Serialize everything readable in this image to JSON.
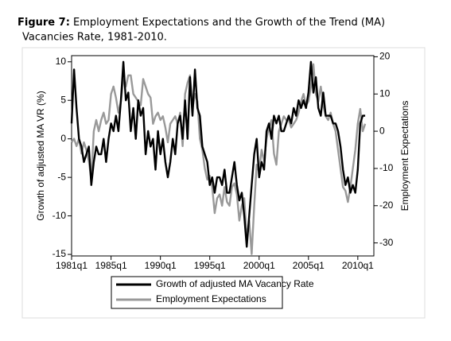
{
  "chart_data": {
    "type": "line",
    "figure_label": "Figure 7:",
    "title": [
      "Employment Expectations and the Growth of the Trend (MA)",
      "Vacancies Rate, 1981-2010."
    ],
    "ylabel": "Growth of adjusted MA VR (%)",
    "y2label": "Employment Expectations",
    "x": [
      84,
      85,
      86,
      87,
      88,
      89,
      90,
      91,
      92,
      93,
      94,
      95,
      96,
      97,
      98,
      99,
      100,
      101,
      102,
      103,
      104,
      105,
      106,
      107,
      108,
      109,
      110,
      111,
      112,
      113,
      114,
      115,
      116,
      117,
      118,
      119,
      120,
      121,
      122,
      123,
      124,
      125,
      126,
      127,
      128,
      129,
      130,
      131,
      132,
      133,
      134,
      135,
      136,
      137,
      138,
      139,
      140,
      141,
      142,
      143,
      144,
      145,
      146,
      147,
      148,
      149,
      150,
      151,
      152,
      153,
      154,
      155,
      156,
      157,
      158,
      159,
      160,
      161,
      162,
      163,
      164,
      165,
      166,
      167,
      168,
      169,
      170,
      171,
      172,
      173,
      174,
      175,
      176,
      177,
      178,
      179,
      180,
      181,
      182,
      183,
      184,
      185,
      186,
      187,
      188,
      189,
      190,
      191,
      192,
      193,
      194,
      195,
      196,
      197,
      198,
      199,
      200,
      201,
      202,
      203
    ],
    "xlim": [
      84,
      206.5
    ],
    "xticks": [
      {
        "value": 84,
        "label": "1981q1"
      },
      {
        "value": 100,
        "label": "1985q1"
      },
      {
        "value": 120,
        "label": "1990q1"
      },
      {
        "value": 140,
        "label": "1995q1"
      },
      {
        "value": 160,
        "label": "2000q1"
      },
      {
        "value": 180,
        "label": "2005q1"
      },
      {
        "value": 200,
        "label": "2010q1"
      }
    ],
    "ylim": [
      -15.2,
      10.8
    ],
    "yticks": [
      10,
      5,
      0,
      -5,
      -10,
      -15
    ],
    "y2lim": [
      -33.5,
      20.3
    ],
    "y2ticks": [
      20,
      10,
      0,
      -10,
      -20,
      -30
    ],
    "legend": "bottom",
    "series": [
      {
        "name": "Growth of adjusted MA Vacancy Rate",
        "color": "#000000",
        "values": [
          2,
          9,
          4,
          0,
          -1,
          -3,
          -2,
          -1,
          -6,
          -3,
          -1,
          -2,
          -2,
          0,
          -3,
          0,
          2,
          1,
          3,
          1,
          5,
          10,
          5,
          6,
          1,
          4,
          0,
          5,
          3,
          4,
          -2,
          1,
          -1,
          0,
          -4,
          1,
          -2,
          0,
          -3,
          -5,
          -3,
          0,
          -2,
          2,
          3,
          0,
          5,
          0,
          8,
          3,
          9,
          4,
          3,
          -1,
          -2,
          -3,
          -6,
          -5,
          -7,
          -5,
          -5,
          -6,
          -4,
          -7,
          -7,
          -5,
          -3,
          -6,
          -8,
          -7,
          -10,
          -14,
          -10,
          -6,
          -2,
          0,
          -5,
          -3,
          -4,
          1,
          2,
          0,
          3,
          2,
          3,
          1,
          1,
          2,
          3,
          2,
          4,
          3,
          5,
          4,
          5,
          4,
          6,
          10,
          6,
          8,
          4,
          3,
          6,
          3,
          3,
          3,
          2,
          2,
          1,
          -1,
          -4,
          -6,
          -5,
          -7,
          -6,
          -7,
          -4,
          2,
          3,
          3
        ]
      },
      {
        "name": "Employment Expectations",
        "color": "#999999",
        "axis": "y2",
        "values": [
          -3,
          -2,
          -4,
          -2,
          -6,
          -3,
          -5,
          -8,
          -13,
          0,
          3,
          0,
          3,
          5,
          2,
          3,
          10,
          12,
          9,
          5,
          8,
          14,
          12,
          15,
          15,
          10,
          9,
          8,
          7,
          14,
          12,
          10,
          9,
          2,
          4,
          5,
          3,
          4,
          1,
          -3,
          2,
          3,
          4,
          2,
          5,
          -4,
          10,
          13,
          15,
          6,
          10,
          8,
          -2,
          -5,
          -10,
          -13,
          -12,
          -15,
          -22,
          -18,
          -17,
          -20,
          -15,
          -19,
          -20,
          -15,
          -14,
          -17,
          -24,
          -20,
          -18,
          -29,
          -24,
          -33,
          -20,
          -9,
          -11,
          -5,
          -8,
          -2,
          1,
          3,
          -6,
          -9,
          0,
          2,
          4,
          3,
          3,
          1,
          2,
          3,
          5,
          8,
          10,
          7,
          8,
          12,
          18,
          10,
          8,
          12,
          7,
          4,
          3,
          5,
          2,
          0,
          -5,
          -10,
          -15,
          -16,
          -19,
          -15,
          -10,
          -5,
          2,
          6,
          0,
          2
        ]
      }
    ]
  }
}
